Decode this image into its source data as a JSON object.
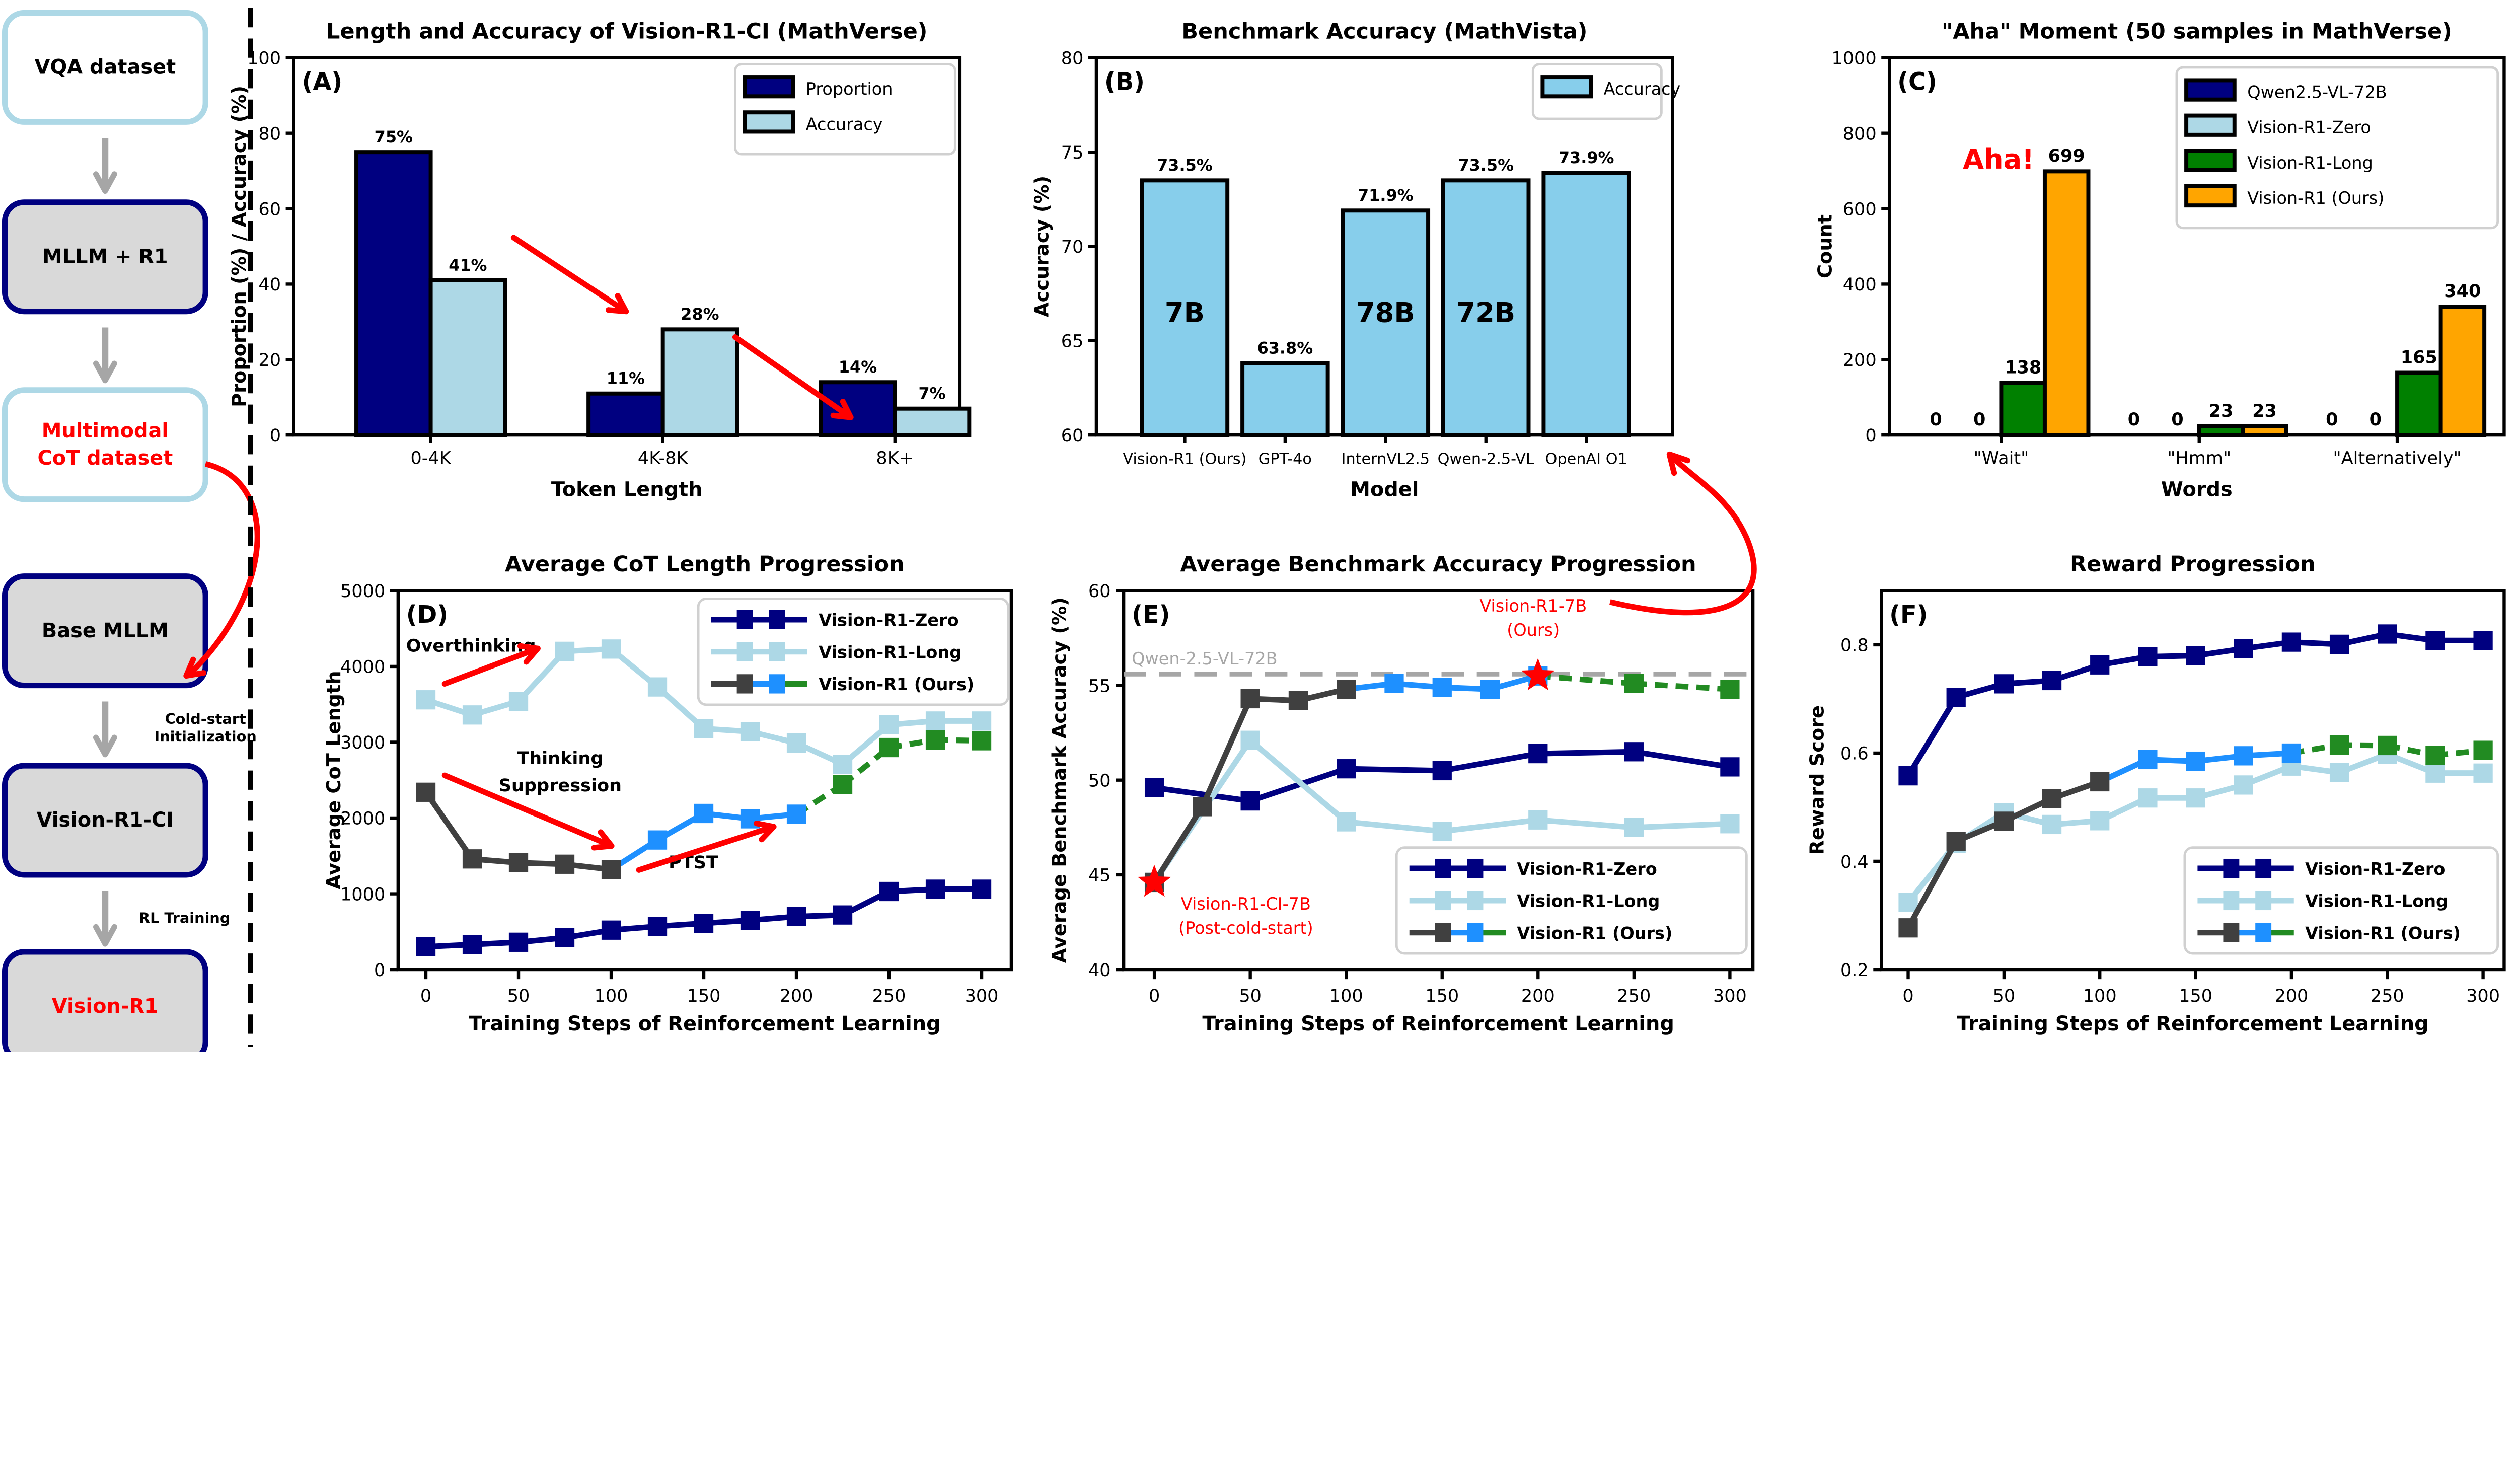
{
  "flow": {
    "boxes": [
      {
        "label": "VQA dataset",
        "style": "light",
        "text_color": "#000000"
      },
      {
        "label": "MLLM + R1",
        "style": "dark",
        "text_color": "#000000"
      },
      {
        "label": [
          "Multimodal",
          "CoT dataset"
        ],
        "style": "light",
        "text_color": "#ff0000"
      },
      {
        "label": "Base MLLM",
        "style": "dark",
        "text_color": "#000000"
      },
      {
        "label": "Vision-R1-CI",
        "style": "dark",
        "text_color": "#000000"
      },
      {
        "label": "Vision-R1",
        "style": "dark",
        "text_color": "#ff0000"
      }
    ],
    "cold_start": [
      "Cold-start",
      "Initialization"
    ],
    "rl_training": "RL Training",
    "colors": {
      "light_border": "#add8e6",
      "dark_border": "#000080",
      "dark_fill": "#d9d9d9",
      "arrow": "#a6a6a6",
      "red_arrow": "#ff0000"
    }
  },
  "chart_data": [
    {
      "id": "A",
      "type": "bar",
      "panel_label": "(A)",
      "title": "Length and Accuracy of Vision-R1-CI (MathVerse)",
      "xlabel": "Token Length",
      "ylabel": "Proportion (%) / Accuracy (%)",
      "ylim": [
        0,
        100
      ],
      "yticks": [
        0,
        20,
        40,
        60,
        80,
        100
      ],
      "categories": [
        "0-4K",
        "4K-8K",
        "8K+"
      ],
      "series": [
        {
          "name": "Proportion",
          "color": "#000080",
          "values": [
            75,
            11,
            14
          ],
          "labels": [
            "75%",
            "11%",
            "14%"
          ]
        },
        {
          "name": "Accuracy",
          "color": "#add8e6",
          "values": [
            41,
            28,
            7
          ],
          "labels": [
            "41%",
            "28%",
            "7%"
          ]
        }
      ],
      "legend": "top-right",
      "grid": false
    },
    {
      "id": "B",
      "type": "bar",
      "panel_label": "(B)",
      "title": "Benchmark Accuracy (MathVista)",
      "xlabel": "Model",
      "ylabel": "Accuracy (%)",
      "ylim": [
        60,
        80
      ],
      "yticks": [
        60,
        65,
        70,
        75,
        80
      ],
      "categories": [
        "Vision-R1 (Ours)",
        "GPT-4o",
        "InternVL2.5",
        "Qwen-2.5-VL",
        "OpenAI O1"
      ],
      "series": [
        {
          "name": "Accuracy",
          "color": "#87ceeb",
          "values": [
            73.5,
            63.8,
            71.9,
            73.5,
            73.9
          ],
          "labels": [
            "73.5%",
            "63.8%",
            "71.9%",
            "73.5%",
            "73.9%"
          ],
          "inner_labels": [
            "7B",
            "",
            "78B",
            "72B",
            ""
          ]
        }
      ],
      "legend": "top-right",
      "grid": false
    },
    {
      "id": "C",
      "type": "bar",
      "panel_label": "(C)",
      "title": "\"Aha\" Moment (50 samples in MathVerse)",
      "xlabel": "Words",
      "ylabel": "Count",
      "ylim": [
        0,
        1000
      ],
      "yticks": [
        0,
        200,
        400,
        600,
        800,
        1000
      ],
      "categories": [
        "\"Wait\"",
        "\"Hmm\"",
        "\"Alternatively\""
      ],
      "series": [
        {
          "name": "Qwen2.5-VL-72B",
          "color": "#000080",
          "values": [
            0,
            0,
            0
          ],
          "labels": [
            "0",
            "0",
            "0"
          ]
        },
        {
          "name": "Vision-R1-Zero",
          "color": "#add8e6",
          "values": [
            0,
            0,
            0
          ],
          "labels": [
            "0",
            "0",
            "0"
          ]
        },
        {
          "name": "Vision-R1-Long",
          "color": "#008000",
          "values": [
            138,
            23,
            165
          ],
          "labels": [
            "138",
            "23",
            "165"
          ]
        },
        {
          "name": "Vision-R1 (Ours)",
          "color": "#ffa500",
          "values": [
            699,
            23,
            340
          ],
          "labels": [
            "699",
            "23",
            "340"
          ]
        }
      ],
      "annotations": [
        "Aha!"
      ],
      "legend": "top-right",
      "grid": false
    },
    {
      "id": "D",
      "type": "line",
      "panel_label": "(D)",
      "title": "Average CoT Length Progression",
      "xlabel": "Training Steps of Reinforcement Learning",
      "ylabel": "Average CoT Length",
      "xlim": [
        -15,
        316
      ],
      "xticks": [
        0,
        50,
        100,
        150,
        200,
        250,
        300
      ],
      "ylim": [
        0,
        5000
      ],
      "yticks": [
        0,
        1000,
        2000,
        3000,
        4000,
        5000
      ],
      "series": [
        {
          "name": "Vision-R1-Zero",
          "color": "#000080",
          "x": [
            0,
            25,
            50,
            75,
            100,
            125,
            150,
            175,
            200,
            225,
            250,
            275,
            300
          ],
          "y": [
            300,
            330,
            360,
            420,
            520,
            570,
            610,
            650,
            700,
            720,
            1030,
            1060,
            1060
          ]
        },
        {
          "name": "Vision-R1-Long",
          "color": "#add8e6",
          "x": [
            0,
            25,
            50,
            75,
            100,
            125,
            150,
            175,
            200,
            225,
            250,
            275,
            300
          ],
          "y": [
            3560,
            3360,
            3540,
            4200,
            4230,
            3730,
            3180,
            3140,
            2990,
            2710,
            3230,
            3280,
            3280
          ]
        },
        {
          "name": "Vision-R1 (Ours)",
          "segments": [
            {
              "until": 100,
              "color": "#404040",
              "style": "solid"
            },
            {
              "until": 200,
              "color": "#1e90ff",
              "style": "solid"
            },
            {
              "until": 300,
              "color": "#228b22",
              "style": "dashed"
            }
          ],
          "x": [
            0,
            25,
            50,
            75,
            100,
            125,
            150,
            175,
            200,
            225,
            250,
            275,
            300
          ],
          "y": [
            2340,
            1460,
            1410,
            1390,
            1320,
            1710,
            2060,
            1990,
            2050,
            2440,
            2930,
            3030,
            3020
          ]
        }
      ],
      "annotations": {
        "overthinking": "Overthinking",
        "suppression": [
          "Thinking",
          "Suppression"
        ],
        "ptst": "PTST"
      },
      "legend": "top-right",
      "grid": false
    },
    {
      "id": "E",
      "type": "line",
      "panel_label": "(E)",
      "title": "Average Benchmark Accuracy Progression",
      "xlabel": "Training Steps of Reinforcement Learning",
      "ylabel": "Average Benchmark Accuracy (%)",
      "xlim": [
        -16,
        312
      ],
      "xticks": [
        0,
        50,
        100,
        150,
        200,
        250,
        300
      ],
      "ylim": [
        40,
        60
      ],
      "yticks": [
        40,
        45,
        50,
        55,
        60
      ],
      "series": [
        {
          "name": "Vision-R1-Zero",
          "color": "#000080",
          "x": [
            0,
            50,
            100,
            150,
            200,
            250,
            300
          ],
          "y": [
            49.6,
            48.9,
            50.6,
            50.5,
            51.4,
            51.5,
            50.7
          ]
        },
        {
          "name": "Vision-R1-Long",
          "color": "#add8e6",
          "x": [
            0,
            50,
            100,
            150,
            200,
            250,
            300
          ],
          "y": [
            44.6,
            52.1,
            47.8,
            47.3,
            47.9,
            47.5,
            47.7
          ]
        },
        {
          "name": "Vision-R1 (Ours)",
          "segments": [
            {
              "until": 100,
              "color": "#404040",
              "style": "solid"
            },
            {
              "until": 200,
              "color": "#1e90ff",
              "style": "solid"
            },
            {
              "until": 300,
              "color": "#228b22",
              "style": "dashed"
            }
          ],
          "x": [
            0,
            25,
            50,
            75,
            100,
            125,
            150,
            175,
            200,
            250,
            300
          ],
          "y": [
            44.6,
            48.6,
            54.3,
            54.2,
            54.8,
            55.1,
            54.9,
            54.8,
            55.5,
            55.1,
            54.8
          ]
        }
      ],
      "reference_line": {
        "label": "Qwen-2.5-VL-72B",
        "value": 55.6,
        "color": "#a6a6a6"
      },
      "markers": [
        {
          "label": [
            "Vision-R1-7B",
            "(Ours)"
          ],
          "x": 200,
          "y": 55.5,
          "color": "#ff0000"
        },
        {
          "label": [
            "Vision-R1-CI-7B",
            "(Post-cold-start)"
          ],
          "x": 0,
          "y": 44.6,
          "color": "#ff0000"
        }
      ],
      "legend": "bottom-right",
      "grid": false
    },
    {
      "id": "F",
      "type": "line",
      "panel_label": "(F)",
      "title": "Reward Progression",
      "xlabel": "Training Steps of Reinforcement Learning",
      "ylabel": "Reward Score",
      "xlim": [
        -14,
        311
      ],
      "xticks": [
        0,
        50,
        100,
        150,
        200,
        250,
        300
      ],
      "ylim": [
        0.2,
        0.9
      ],
      "yticks": [
        0.2,
        0.4,
        0.6,
        0.8
      ],
      "series": [
        {
          "name": "Vision-R1-Zero",
          "color": "#000080",
          "x": [
            0,
            25,
            50,
            75,
            100,
            125,
            150,
            175,
            200,
            225,
            250,
            275,
            300
          ],
          "y": [
            0.558,
            0.703,
            0.728,
            0.734,
            0.763,
            0.778,
            0.78,
            0.793,
            0.805,
            0.801,
            0.82,
            0.808,
            0.808
          ]
        },
        {
          "name": "Vision-R1-Long",
          "color": "#add8e6",
          "x": [
            0,
            25,
            50,
            75,
            100,
            125,
            150,
            175,
            200,
            225,
            250,
            275,
            300
          ],
          "y": [
            0.324,
            0.433,
            0.49,
            0.468,
            0.475,
            0.517,
            0.517,
            0.541,
            0.576,
            0.564,
            0.598,
            0.563,
            0.563
          ]
        },
        {
          "name": "Vision-R1 (Ours)",
          "segments": [
            {
              "until": 100,
              "color": "#404040",
              "style": "solid"
            },
            {
              "until": 200,
              "color": "#1e90ff",
              "style": "solid"
            },
            {
              "until": 300,
              "color": "#228b22",
              "style": "dashed"
            }
          ],
          "x": [
            0,
            25,
            50,
            75,
            100,
            125,
            150,
            175,
            200,
            225,
            250,
            275,
            300
          ],
          "y": [
            0.277,
            0.437,
            0.474,
            0.516,
            0.547,
            0.588,
            0.585,
            0.595,
            0.6,
            0.615,
            0.614,
            0.596,
            0.605
          ]
        }
      ],
      "legend": "bottom-right",
      "grid": false
    }
  ]
}
